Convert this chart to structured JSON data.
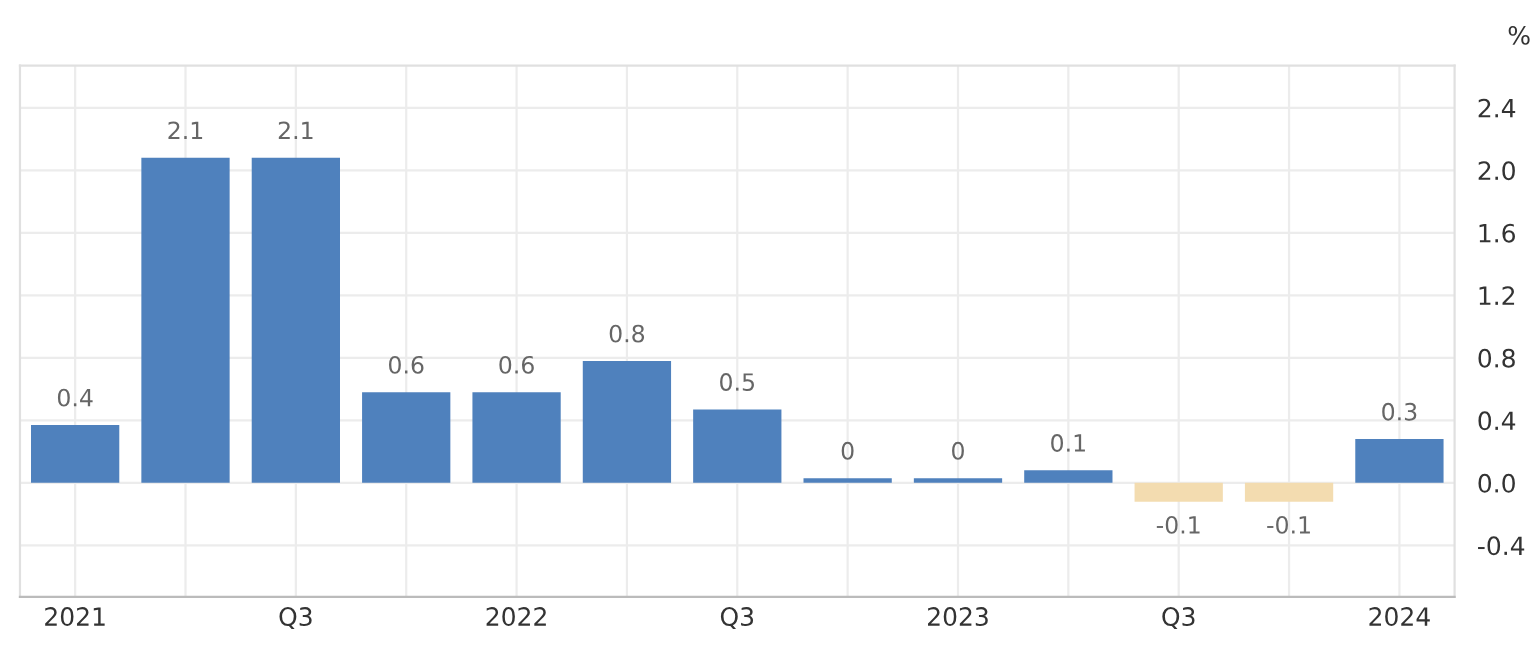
{
  "chart_data": {
    "type": "bar",
    "ylabel": "%",
    "categories": [
      "2021",
      null,
      "Q3",
      null,
      "2022",
      null,
      "Q3",
      null,
      "2023",
      null,
      "Q3",
      null,
      "2024"
    ],
    "values": [
      0.37,
      2.08,
      2.08,
      0.58,
      0.58,
      0.78,
      0.47,
      0.03,
      0.03,
      0.08,
      -0.12,
      -0.12,
      0.28
    ],
    "colors": [
      "#4f81bd",
      "#4f81bd",
      "#4f81bd",
      "#4f81bd",
      "#4f81bd",
      "#4f81bd",
      "#4f81bd",
      "#4f81bd",
      "#4f81bd",
      "#4f81bd",
      "#f3dcb0",
      "#f3dcb0",
      "#4f81bd"
    ],
    "value_labels": [
      "0.4",
      "2.1",
      "2.1",
      "0.6",
      "0.6",
      "0.8",
      "0.5",
      "0",
      "0",
      "0.1",
      "-0.1",
      "-0.1",
      "0.3"
    ],
    "ylim": [
      -0.73,
      2.67
    ],
    "yticks": [
      -0.4,
      {
        "value": 0,
        "label": "0.0"
      },
      0.4,
      0.8,
      1.2,
      1.6,
      {
        "value": 2,
        "label": "2.0"
      },
      2.4
    ],
    "grid": true
  }
}
